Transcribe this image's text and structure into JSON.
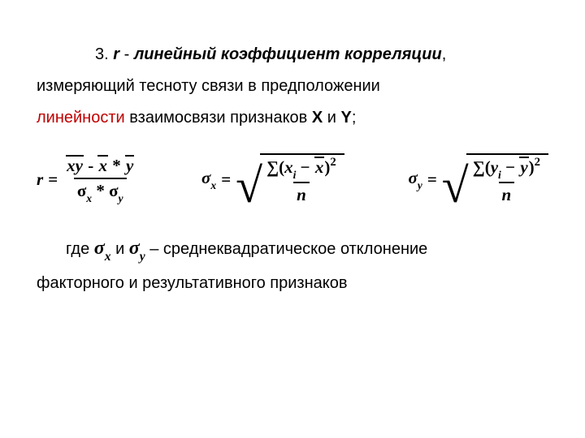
{
  "text": {
    "num": "3.",
    "r": "r",
    "dash": " - ",
    "term": "линейный коэффициент корреляции",
    "comma": ",",
    "rest1": "измеряющий тесноту связи в предположении",
    "linearity": "линейности",
    "rest2": " взаимосвязи признаков ",
    "X": "X",
    "and1": " и ",
    "Y": "Y",
    "semicolon": ";",
    "where": "где",
    "sigmax": "σ",
    "subx": "x",
    "and2": "и",
    "sigmay": "σ",
    "suby": "y",
    "dash2": "–",
    "std": "среднеквадратическое отклонение",
    "rest3": "факторного и результативного признаков"
  },
  "formulas": {
    "r_lhs": "r",
    "r_num_xy": "xy",
    "r_num_minus": " - ",
    "r_num_x": "x",
    "r_num_star": " * ",
    "r_num_y": "y",
    "r_den_sx": "σ",
    "r_den_subx": "x",
    "r_den_star": " * ",
    "r_den_sy": "σ",
    "r_den_suby": "y",
    "sx_lhs": "σ",
    "sx_lhs_sub": "x",
    "sx_sum": "∑",
    "sx_open": "(",
    "sx_xi": "x",
    "sx_i": "i",
    "sx_minus": " − ",
    "sx_xbar": "x",
    "sx_close": ")",
    "sx_sq": "2",
    "sx_n": "n",
    "sy_lhs": "σ",
    "sy_lhs_sub": "y",
    "sy_sum": "∑",
    "sy_open": "(",
    "sy_yi": "y",
    "sy_i": "i",
    "sy_minus": " − ",
    "sy_ybar": "y",
    "sy_close": ")",
    "sy_sq": "2",
    "sy_n": "n"
  }
}
